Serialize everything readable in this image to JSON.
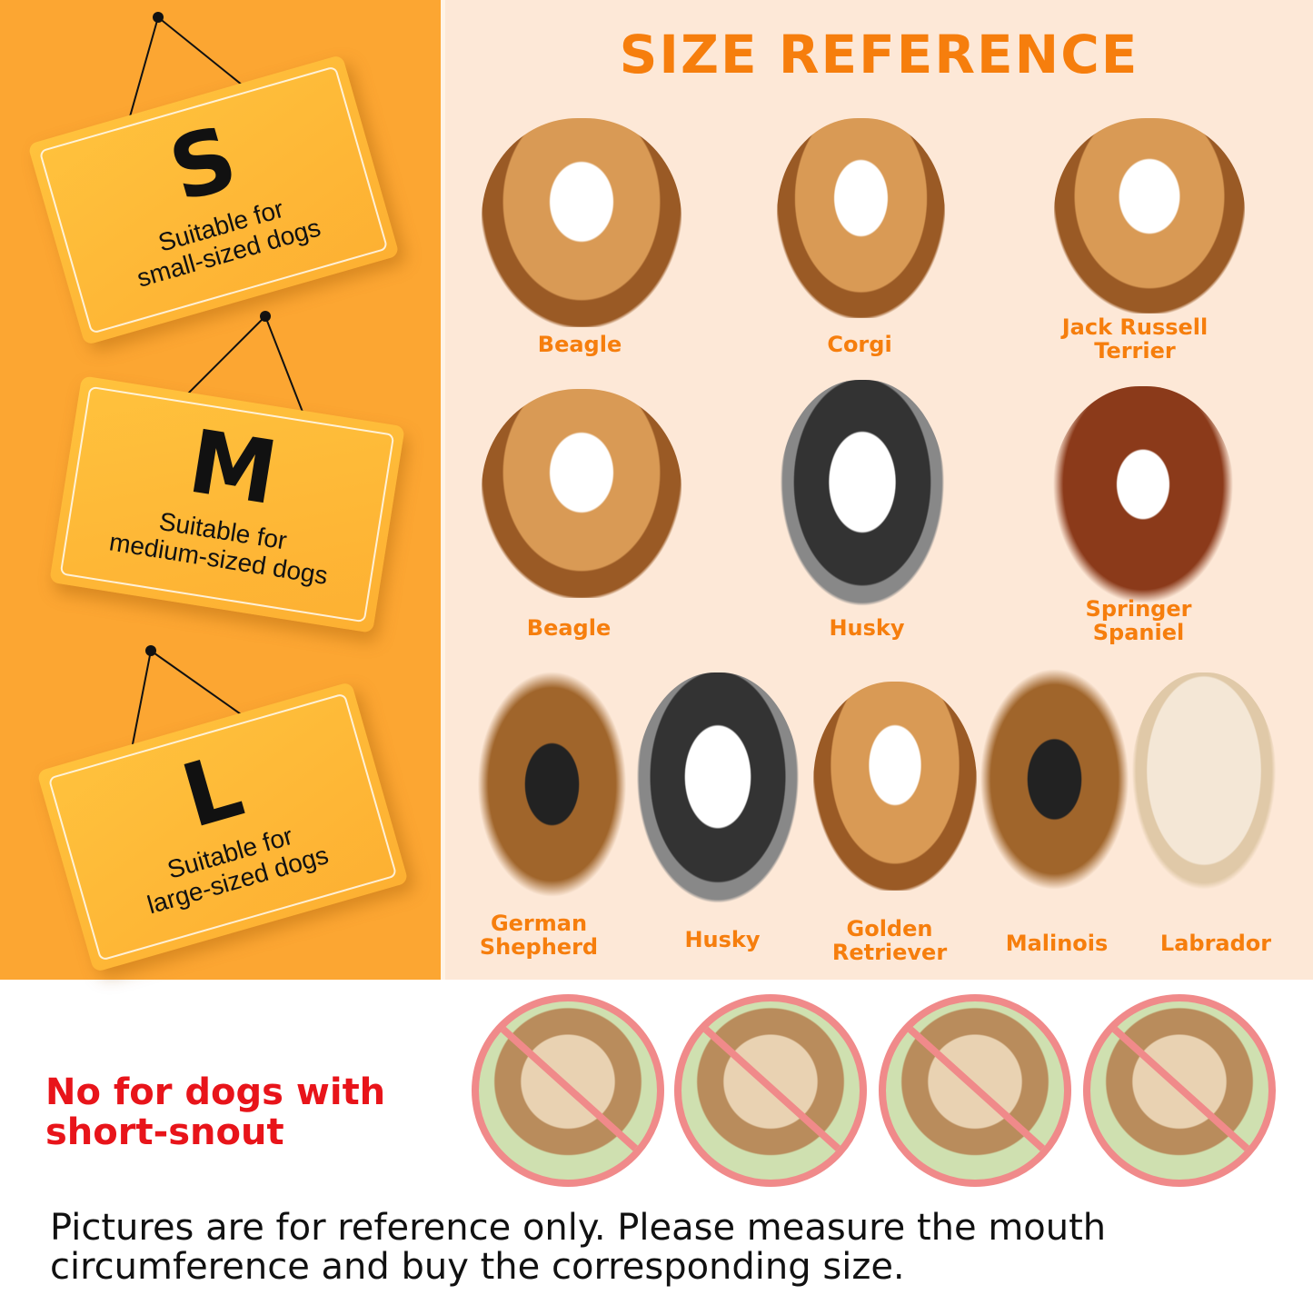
{
  "signs": [
    {
      "letter": "S",
      "description": "Suitable for\nsmall-sized dogs"
    },
    {
      "letter": "M",
      "description": "Suitable for\nmedium-sized dogs"
    },
    {
      "letter": "L",
      "description": "Suitable for\nlarge-sized dogs"
    }
  ],
  "title": "SIZE REFERENCE",
  "dogs": {
    "small": [
      "Beagle",
      "Corgi",
      "Jack Russell\nTerrier"
    ],
    "medium": [
      "Beagle",
      "Husky",
      "Springer\nSpaniel"
    ],
    "large": [
      "German\nShepherd",
      "Husky",
      "Golden\nRetriever",
      "Malinois",
      "Labrador"
    ]
  },
  "warning": "No for dogs with\nshort-snout",
  "excluded_icons": [
    "no-pug-icon",
    "no-maltipoo-icon",
    "no-pug-icon",
    "no-poodle-icon"
  ],
  "footnote": "Pictures are for reference only. Please measure the mouth\ncircumference and buy the corresponding size.",
  "colors": {
    "accent": "#F67E0D",
    "panel": "#FCA632",
    "warning": "#E8141A"
  }
}
